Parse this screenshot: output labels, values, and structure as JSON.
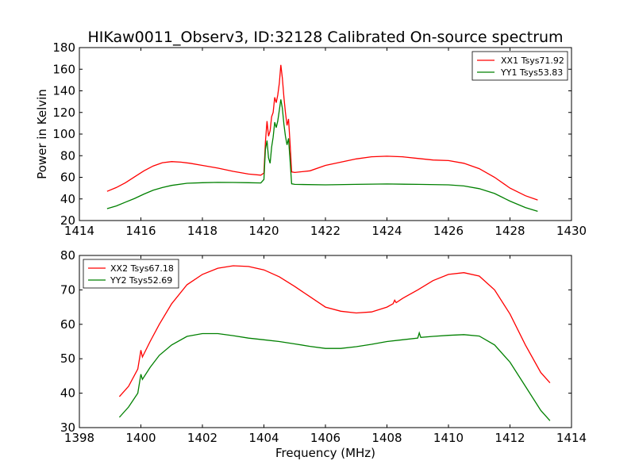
{
  "title": "HIKaw0011_Observ3, ID:32128 Calibrated On-source spectrum",
  "chart_data": [
    {
      "type": "line",
      "title": "HIKaw0011_Observ3, ID:32128 Calibrated On-source spectrum",
      "xlabel": "",
      "ylabel": "Power in Kelvin",
      "xlim": [
        1414,
        1430
      ],
      "ylim": [
        20,
        180
      ],
      "xticks": [
        "1414",
        "1416",
        "1418",
        "1420",
        "1422",
        "1424",
        "1426",
        "1428",
        "1430"
      ],
      "yticks": [
        "20",
        "40",
        "60",
        "80",
        "100",
        "120",
        "140",
        "160",
        "180"
      ],
      "grid": false,
      "legend": "top-right",
      "series": [
        {
          "name": "XX1 Tsys71.92",
          "color": "#ff0000",
          "points": [
            [
              1414.9,
              47
            ],
            [
              1415.2,
              50.5
            ],
            [
              1415.5,
              55
            ],
            [
              1415.8,
              60.5
            ],
            [
              1416.1,
              66
            ],
            [
              1416.4,
              70.5
            ],
            [
              1416.7,
              73.5
            ],
            [
              1417.0,
              74.5
            ],
            [
              1417.3,
              74
            ],
            [
              1417.6,
              73
            ],
            [
              1418.0,
              71
            ],
            [
              1418.5,
              68.5
            ],
            [
              1419.0,
              65.5
            ],
            [
              1419.5,
              63
            ],
            [
              1419.9,
              62
            ],
            [
              1420.0,
              64
            ],
            [
              1420.05,
              93
            ],
            [
              1420.1,
              112
            ],
            [
              1420.15,
              98
            ],
            [
              1420.2,
              103
            ],
            [
              1420.25,
              116
            ],
            [
              1420.3,
              120
            ],
            [
              1420.35,
              134
            ],
            [
              1420.4,
              129
            ],
            [
              1420.45,
              136
            ],
            [
              1420.5,
              147
            ],
            [
              1420.55,
              164
            ],
            [
              1420.6,
              152
            ],
            [
              1420.65,
              134
            ],
            [
              1420.7,
              120
            ],
            [
              1420.75,
              108
            ],
            [
              1420.8,
              114
            ],
            [
              1420.85,
              92
            ],
            [
              1420.9,
              65
            ],
            [
              1421.0,
              64.5
            ],
            [
              1421.5,
              66
            ],
            [
              1422.0,
              71
            ],
            [
              1422.5,
              74
            ],
            [
              1423.0,
              77
            ],
            [
              1423.5,
              79
            ],
            [
              1424.0,
              79.5
            ],
            [
              1424.5,
              79
            ],
            [
              1425.0,
              77.5
            ],
            [
              1425.5,
              76
            ],
            [
              1426.0,
              75.5
            ],
            [
              1426.5,
              73
            ],
            [
              1427.0,
              68
            ],
            [
              1427.5,
              60
            ],
            [
              1428.0,
              50
            ],
            [
              1428.5,
              43
            ],
            [
              1428.9,
              39
            ]
          ]
        },
        {
          "name": "YY1 Tsys53.83",
          "color": "#008000",
          "points": [
            [
              1414.9,
              31
            ],
            [
              1415.2,
              33.5
            ],
            [
              1415.5,
              37
            ],
            [
              1415.8,
              40.5
            ],
            [
              1416.1,
              44.5
            ],
            [
              1416.4,
              48
            ],
            [
              1416.7,
              50.5
            ],
            [
              1417.0,
              52.5
            ],
            [
              1417.5,
              54.5
            ],
            [
              1418.0,
              55
            ],
            [
              1418.5,
              55.3
            ],
            [
              1419.0,
              55.2
            ],
            [
              1419.5,
              55
            ],
            [
              1419.9,
              54.8
            ],
            [
              1420.0,
              58
            ],
            [
              1420.05,
              86
            ],
            [
              1420.1,
              94
            ],
            [
              1420.15,
              78
            ],
            [
              1420.2,
              73
            ],
            [
              1420.25,
              88
            ],
            [
              1420.3,
              97
            ],
            [
              1420.35,
              111
            ],
            [
              1420.4,
              106
            ],
            [
              1420.45,
              112
            ],
            [
              1420.5,
              122
            ],
            [
              1420.55,
              132
            ],
            [
              1420.6,
              124
            ],
            [
              1420.65,
              109
            ],
            [
              1420.7,
              98
            ],
            [
              1420.75,
              90
            ],
            [
              1420.8,
              96
            ],
            [
              1420.85,
              76
            ],
            [
              1420.9,
              54
            ],
            [
              1421.0,
              53.5
            ],
            [
              1422.0,
              53
            ],
            [
              1423.0,
              53.5
            ],
            [
              1424.0,
              53.8
            ],
            [
              1425.0,
              53.5
            ],
            [
              1426.0,
              53
            ],
            [
              1426.5,
              52
            ],
            [
              1427.0,
              49.5
            ],
            [
              1427.5,
              45
            ],
            [
              1428.0,
              38
            ],
            [
              1428.5,
              32
            ],
            [
              1428.9,
              28.5
            ]
          ]
        }
      ]
    },
    {
      "type": "line",
      "title": "",
      "xlabel": "Frequency (MHz)",
      "ylabel": "",
      "xlim": [
        1398,
        1414
      ],
      "ylim": [
        30,
        80
      ],
      "xticks": [
        "1398",
        "1400",
        "1402",
        "1404",
        "1406",
        "1408",
        "1410",
        "1412",
        "1414"
      ],
      "yticks": [
        "30",
        "40",
        "50",
        "60",
        "70",
        "80"
      ],
      "grid": false,
      "legend": "top-left",
      "series": [
        {
          "name": "XX2 Tsys67.18",
          "color": "#ff0000",
          "points": [
            [
              1399.3,
              39
            ],
            [
              1399.6,
              42
            ],
            [
              1399.9,
              47
            ],
            [
              1400.0,
              52.5
            ],
            [
              1400.05,
              50.5
            ],
            [
              1400.3,
              55
            ],
            [
              1400.6,
              60
            ],
            [
              1401.0,
              66
            ],
            [
              1401.5,
              71.5
            ],
            [
              1402.0,
              74.5
            ],
            [
              1402.5,
              76.3
            ],
            [
              1403.0,
              77
            ],
            [
              1403.5,
              76.8
            ],
            [
              1404.0,
              75.8
            ],
            [
              1404.5,
              73.8
            ],
            [
              1405.0,
              71
            ],
            [
              1405.5,
              68
            ],
            [
              1406.0,
              65
            ],
            [
              1406.5,
              63.8
            ],
            [
              1407.0,
              63.3
            ],
            [
              1407.5,
              63.6
            ],
            [
              1408.0,
              65
            ],
            [
              1408.2,
              66
            ],
            [
              1408.25,
              67
            ],
            [
              1408.3,
              66.3
            ],
            [
              1408.5,
              67.5
            ],
            [
              1409.0,
              70
            ],
            [
              1409.5,
              72.7
            ],
            [
              1410.0,
              74.5
            ],
            [
              1410.5,
              75
            ],
            [
              1411.0,
              74
            ],
            [
              1411.5,
              70
            ],
            [
              1412.0,
              63
            ],
            [
              1412.5,
              54
            ],
            [
              1413.0,
              46
            ],
            [
              1413.3,
              43
            ]
          ]
        },
        {
          "name": "YY2 Tsys52.69",
          "color": "#008000",
          "points": [
            [
              1399.3,
              33
            ],
            [
              1399.6,
              36
            ],
            [
              1399.9,
              40
            ],
            [
              1400.0,
              45.5
            ],
            [
              1400.05,
              44
            ],
            [
              1400.3,
              47.5
            ],
            [
              1400.6,
              51
            ],
            [
              1401.0,
              54
            ],
            [
              1401.5,
              56.5
            ],
            [
              1402.0,
              57.3
            ],
            [
              1402.5,
              57.3
            ],
            [
              1403.0,
              56.7
            ],
            [
              1403.5,
              56
            ],
            [
              1404.0,
              55.5
            ],
            [
              1404.5,
              55
            ],
            [
              1405.0,
              54.3
            ],
            [
              1405.5,
              53.6
            ],
            [
              1406.0,
              53
            ],
            [
              1406.5,
              53
            ],
            [
              1407.0,
              53.5
            ],
            [
              1407.5,
              54.2
            ],
            [
              1408.0,
              55
            ],
            [
              1408.5,
              55.5
            ],
            [
              1409.0,
              56
            ],
            [
              1409.05,
              57.5
            ],
            [
              1409.1,
              56.2
            ],
            [
              1409.5,
              56.5
            ],
            [
              1410.0,
              56.8
            ],
            [
              1410.5,
              57
            ],
            [
              1411.0,
              56.6
            ],
            [
              1411.5,
              54
            ],
            [
              1412.0,
              49
            ],
            [
              1412.5,
              42
            ],
            [
              1413.0,
              35
            ],
            [
              1413.3,
              32
            ]
          ]
        }
      ]
    }
  ]
}
